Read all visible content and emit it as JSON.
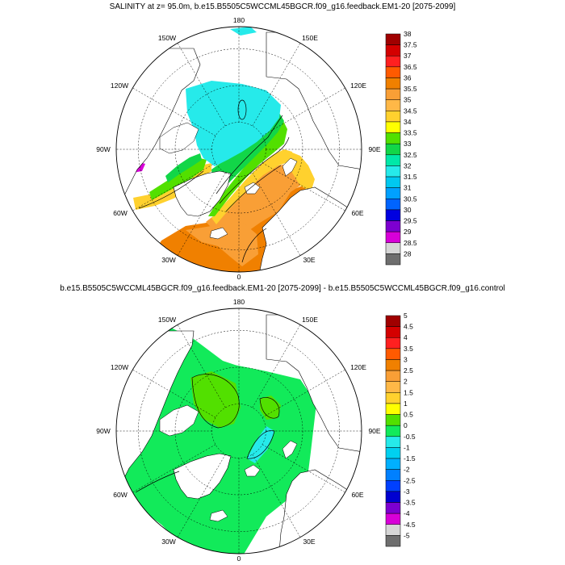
{
  "chart_data": [
    {
      "type": "polar-stereographic-contour",
      "title": "SALINITY at z=  95.0m, b.e15.B5505C5WCCML45BGCR.f09_g16.feedback.EM1-20 [2075-2099]",
      "lon_labels": {
        "top": "180",
        "tl": "150W",
        "tr": "150E",
        "l2": "120W",
        "r2": "120E",
        "left": "90W",
        "right": "90E",
        "l4": "60W",
        "r4": "60E",
        "bl": "30W",
        "br": "30E",
        "bottom": "0"
      },
      "colorbar_labels": [
        "38",
        "37.5",
        "37",
        "36.5",
        "36",
        "35.5",
        "35",
        "34.5",
        "34",
        "33.5",
        "33",
        "32.5",
        "32",
        "31.5",
        "31",
        "30.5",
        "30",
        "29.5",
        "29",
        "28.5",
        "28"
      ],
      "colors": [
        "#a00000",
        "#d40000",
        "#ff2020",
        "#ff5a00",
        "#f08000",
        "#f99f36",
        "#ffb847",
        "#ffd12e",
        "#ffff00",
        "#52e000",
        "#12d648",
        "#00e8a8",
        "#26eaea",
        "#00c8f0",
        "#00a0ff",
        "#0064ff",
        "#0000e0",
        "#7d00d0",
        "#d800d8",
        "#d6d6d6",
        "#6e6e6e"
      ]
    },
    {
      "type": "polar-stereographic-contour",
      "title": "b.e15.B5505C5WCCML45BGCR.f09_g16.feedback.EM1-20 [2075-2099] - b.e15.B5505C5WCCML45BGCR.f09_g16.control",
      "lon_labels": {
        "top": "180",
        "tl": "150W",
        "tr": "150E",
        "l2": "120W",
        "r2": "120E",
        "left": "90W",
        "right": "90E",
        "l4": "60W",
        "r4": "60E",
        "bl": "30W",
        "br": "30E",
        "bottom": "0"
      },
      "colorbar_labels": [
        "5",
        "4.5",
        "4",
        "3.5",
        "3",
        "2.5",
        "2",
        "1.5",
        "1",
        "0.5",
        "0",
        "-0.5",
        "-1",
        "-1.5",
        "-2",
        "-2.5",
        "-3",
        "-3.5",
        "-4",
        "-4.5",
        "-5"
      ],
      "colors": [
        "#a00000",
        "#d40000",
        "#ff2020",
        "#ff5a00",
        "#f08000",
        "#f99f36",
        "#ffb847",
        "#ffd12e",
        "#ffff00",
        "#52e000",
        "#12ea5a",
        "#26eaea",
        "#00d0f0",
        "#00b0ff",
        "#0080ff",
        "#0040ff",
        "#0000d0",
        "#7d00d0",
        "#d800d8",
        "#d6d6d6",
        "#6e6e6e"
      ]
    }
  ]
}
